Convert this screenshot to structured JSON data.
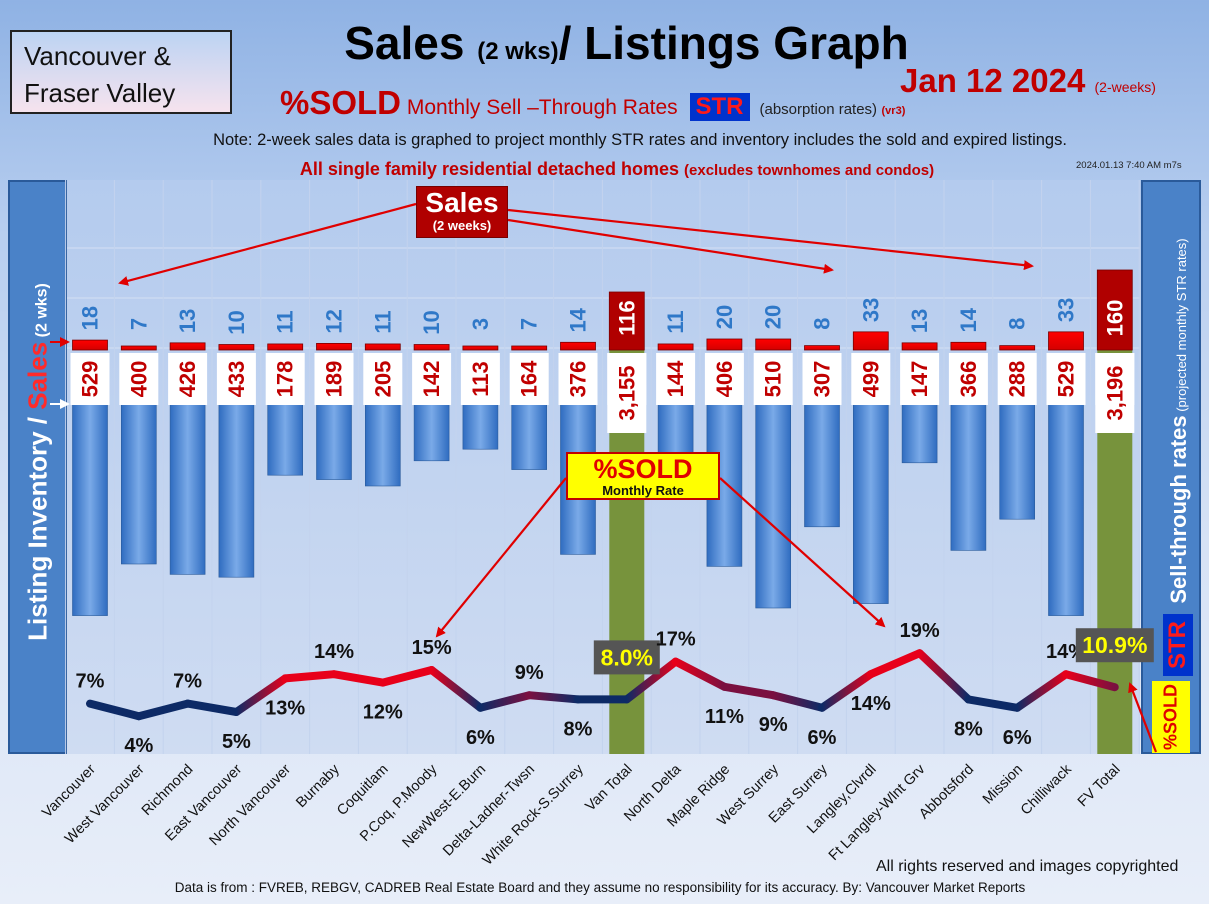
{
  "region": {
    "line1": "Vancouver &",
    "line2": "Fraser Valley"
  },
  "title": {
    "main_a": "Sales ",
    "main_small": "(2 wks)",
    "main_b": "/ Listings Graph"
  },
  "date": {
    "text": "Jan 12  2024",
    "suffix": "(2-weeks)"
  },
  "subtitle": {
    "sold": "%SOLD",
    "rest": " Monthly Sell –Through Rates ",
    "str": "STR",
    "absorption": "(absorption rates)",
    "vr": "(vr3)"
  },
  "note": "Note: 2-week sales data is graphed to project monthly STR rates and inventory includes the sold and expired listings.",
  "subnote": {
    "main": "All single family residential detached homes ",
    "small": "(excludes townhomes and condos)"
  },
  "stamp": "2024.01.13 7:40 AM m7s",
  "left_axis": {
    "part1": "Listing Inventory / ",
    "part2": "Sales",
    "part3": " (2  wks)"
  },
  "right_axis": {
    "main": "Sell-through rates",
    "small": "  (projected monthly STR rates)"
  },
  "badges": {
    "str": "STR",
    "sold": "%SOLD"
  },
  "callouts": {
    "sales_title": "Sales",
    "sales_sub": "(2 weeks)",
    "sold_title": "%SOLD",
    "sold_sub": "Monthly Rate"
  },
  "footer": {
    "copyright": "All rights reserved and  images copyrighted",
    "source": "Data is from : FVREB, REBGV, CADREB Real Estate Board and they assume no responsibility for its accuracy. By: Vancouver Market Reports"
  },
  "colors": {
    "sales_bar": "#ff0000",
    "total_bar": "#b00000",
    "listing_bar": "#4a86d4",
    "total_column": "#77933c",
    "line_low": "#0d2a66",
    "line_high": "#e8001a"
  },
  "chart_data": {
    "type": "bar",
    "categories": [
      "Vancouver",
      "West Vancouver",
      "Richmond",
      "East Vancouver",
      "North Vancouver",
      "Burnaby",
      "Coquitlam",
      "P.Coq, P.Moody",
      "NewWest-E.Burn",
      "Delta-Ladner-Twsn",
      "White Rock-S.Surrey",
      "Van Total",
      "North Delta",
      "Maple Ridge",
      "West Surrey",
      "East Surrey",
      "Langley,Clvrdl",
      "Ft Langley-Wlnt Grv",
      "Abbotsford",
      "Mission",
      "Chilliwack",
      "FV Total"
    ],
    "series": [
      {
        "name": "Sales",
        "values": [
          18,
          7,
          13,
          10,
          11,
          12,
          11,
          10,
          3,
          7,
          14,
          116,
          11,
          20,
          20,
          8,
          33,
          13,
          14,
          8,
          33,
          160
        ]
      },
      {
        "name": "Listing Inventory",
        "values": [
          529,
          400,
          426,
          433,
          178,
          189,
          205,
          142,
          113,
          164,
          376,
          3155,
          144,
          406,
          510,
          307,
          499,
          147,
          366,
          288,
          529,
          3196
        ],
        "labels": [
          "529",
          "400",
          "426",
          "433",
          "178",
          "189",
          "205",
          "142",
          "113",
          "164",
          "376",
          "3,155",
          "144",
          "406",
          "510",
          "307",
          "499",
          "147",
          "366",
          "288",
          "529",
          "3,196"
        ]
      },
      {
        "name": "%SOLD",
        "values": [
          7,
          4,
          7,
          5,
          13,
          14,
          12,
          15,
          6,
          9,
          8,
          8.0,
          17,
          11,
          9,
          6,
          14,
          19,
          8,
          6,
          14,
          10.9
        ],
        "labels": [
          "7%",
          "4%",
          "7%",
          "5%",
          "13%",
          "14%",
          "12%",
          "15%",
          "6%",
          "9%",
          "8%",
          "8.0%",
          "17%",
          "11%",
          "9%",
          "6%",
          "14%",
          "19%",
          "8%",
          "6%",
          "14%",
          "10.9%"
        ]
      }
    ]
  }
}
